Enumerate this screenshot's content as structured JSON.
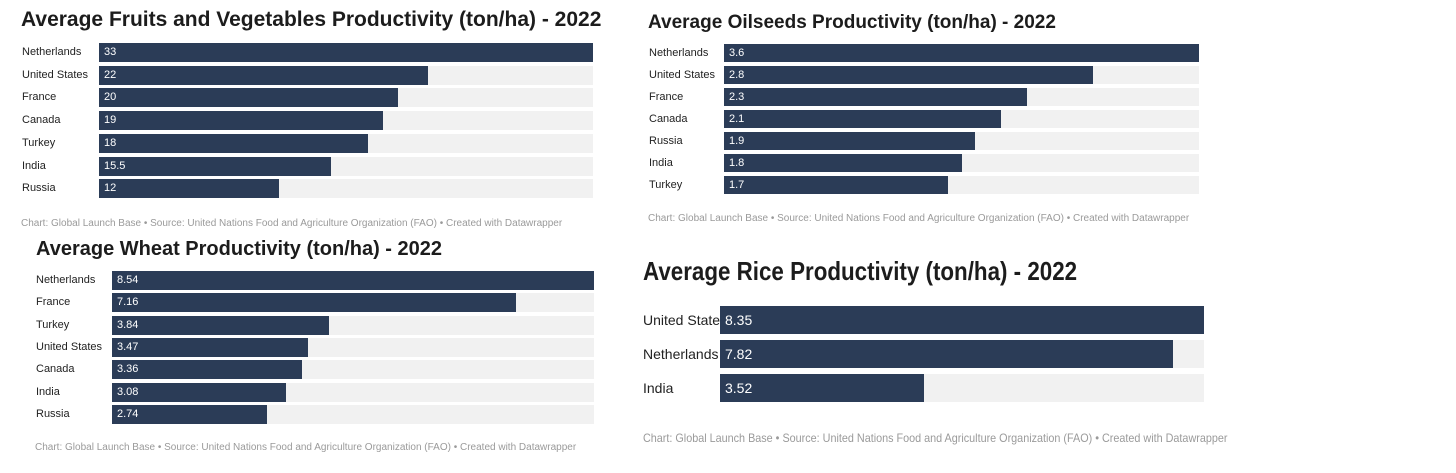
{
  "colors": {
    "bar": "#2b3c57",
    "track": "#f1f1f1"
  },
  "chart_data": [
    {
      "type": "bar",
      "orientation": "horizontal",
      "title": "Average Fruits and Vegetables Productivity (ton/ha) - 2022",
      "categories": [
        "Netherlands",
        "United States",
        "France",
        "Canada",
        "Turkey",
        "India",
        "Russia"
      ],
      "values": [
        33,
        22,
        20,
        19,
        18,
        15.5,
        12
      ],
      "value_labels": [
        "33",
        "22",
        "20",
        "19",
        "18",
        "15.5",
        "12"
      ],
      "xlim": [
        0,
        33
      ],
      "footer": "Chart: Global Launch Base • Source: United Nations Food and Agriculture Organization (FAO) • Created with Datawrapper"
    },
    {
      "type": "bar",
      "orientation": "horizontal",
      "title": "Average Oilseeds Productivity (ton/ha) - 2022",
      "categories": [
        "Netherlands",
        "United States",
        "France",
        "Canada",
        "Russia",
        "India",
        "Turkey"
      ],
      "values": [
        3.6,
        2.8,
        2.3,
        2.1,
        1.9,
        1.8,
        1.7
      ],
      "value_labels": [
        "3.6",
        "2.8",
        "2.3",
        "2.1",
        "1.9",
        "1.8",
        "1.7"
      ],
      "xlim": [
        0,
        3.6
      ],
      "footer": "Chart: Global Launch Base • Source: United Nations Food and Agriculture Organization (FAO) • Created with Datawrapper"
    },
    {
      "type": "bar",
      "orientation": "horizontal",
      "title": "Average Wheat Productivity (ton/ha) - 2022",
      "categories": [
        "Netherlands",
        "France",
        "Turkey",
        "United States",
        "Canada",
        "India",
        "Russia"
      ],
      "values": [
        8.54,
        7.16,
        3.84,
        3.47,
        3.36,
        3.08,
        2.74
      ],
      "value_labels": [
        "8.54",
        "7.16",
        "3.84",
        "3.47",
        "3.36",
        "3.08",
        "2.74"
      ],
      "xlim": [
        0,
        8.54
      ],
      "footer": "Chart: Global Launch Base • Source: United Nations Food and Agriculture Organization (FAO) • Created with Datawrapper"
    },
    {
      "type": "bar",
      "orientation": "horizontal",
      "title": "Average Rice Productivity (ton/ha) - 2022",
      "categories": [
        "United States",
        "Netherlands",
        "India"
      ],
      "values": [
        8.35,
        7.82,
        3.52
      ],
      "value_labels": [
        "8.35",
        "7.82",
        "3.52"
      ],
      "xlim": [
        0,
        8.35
      ],
      "footer": "Chart: Global Launch Base • Source: United Nations Food and Agriculture Organization (FAO) • Created with Datawrapper"
    }
  ]
}
